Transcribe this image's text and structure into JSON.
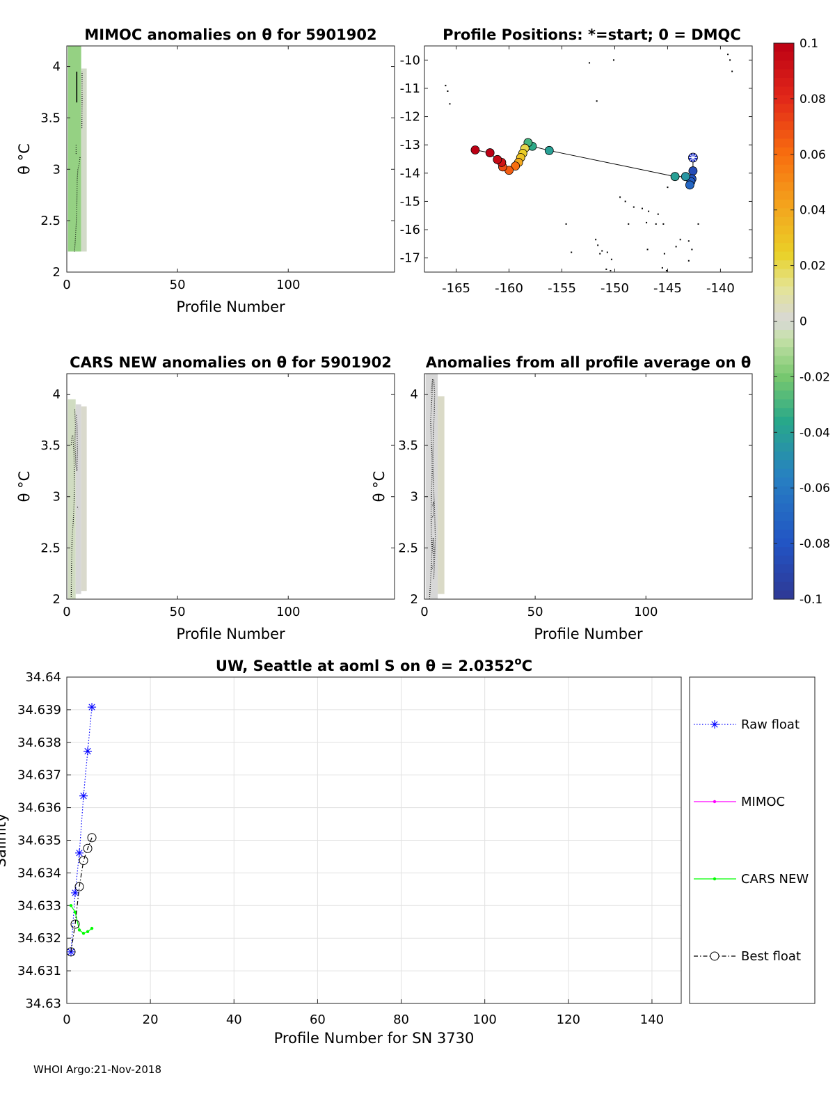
{
  "footer": "WHOI Argo:21-Nov-2018",
  "chart_data": [
    {
      "id": "mimoc",
      "type": "heatmap",
      "title": "MIMOC anomalies on θ  for 5901902",
      "xlabel": "Profile Number",
      "ylabel": "θ °C",
      "xlim": [
        0,
        148
      ],
      "ylim": [
        2,
        4.2
      ],
      "xticks": [
        0,
        50,
        100
      ],
      "yticks": [
        2,
        2.5,
        3,
        3.5,
        4
      ],
      "cells": [
        {
          "x0": 0.5,
          "x1": 6.5,
          "y0": 2.2,
          "y1": 4.2,
          "v": -0.015
        },
        {
          "x0": 6.5,
          "x1": 9,
          "y0": 2.2,
          "y1": 3.98,
          "v": -0.002
        }
      ],
      "contours": [
        {
          "x": [
            3.5,
            3.8,
            4.2,
            4.5,
            4.6,
            4.7,
            5.0,
            5.6,
            6.0
          ],
          "y": [
            2.2,
            2.3,
            2.45,
            2.6,
            2.75,
            2.9,
            3.0,
            3.05,
            3.12
          ],
          "style": "dotted"
        },
        {
          "x": [
            4.2,
            4.2
          ],
          "y": [
            3.15,
            3.25
          ],
          "style": "dotted"
        },
        {
          "x": [
            4.5,
            4.5
          ],
          "y": [
            3.65,
            3.95
          ],
          "style": "solid"
        },
        {
          "x": [
            6.8,
            6.9,
            6.9
          ],
          "y": [
            3.4,
            3.65,
            3.95
          ],
          "style": "dotted"
        }
      ]
    },
    {
      "id": "positions",
      "type": "scatter",
      "title": "Profile Positions: *=start; 0 = DMQC",
      "xlim": [
        -168,
        -137
      ],
      "ylim": [
        -17.5,
        -9.5
      ],
      "xticks": [
        -165,
        -160,
        -155,
        -150,
        -145,
        -140
      ],
      "yticks": [
        -10,
        -11,
        -12,
        -13,
        -14,
        -15,
        -16,
        -17
      ],
      "track": [
        {
          "lon": -142.6,
          "lat": -13.45,
          "v": -0.09
        },
        {
          "lon": -142.6,
          "lat": -13.92,
          "v": -0.085
        },
        {
          "lon": -142.7,
          "lat": -14.2,
          "v": -0.08
        },
        {
          "lon": -142.8,
          "lat": -14.3,
          "v": -0.075
        },
        {
          "lon": -142.9,
          "lat": -14.42,
          "v": -0.07
        },
        {
          "lon": -143.3,
          "lat": -14.12,
          "v": -0.045
        },
        {
          "lon": -144.3,
          "lat": -14.12,
          "v": -0.04
        },
        {
          "lon": -156.2,
          "lat": -13.2,
          "v": -0.04
        },
        {
          "lon": -157.8,
          "lat": -13.05,
          "v": -0.035
        },
        {
          "lon": -158.2,
          "lat": -12.92,
          "v": -0.03
        },
        {
          "lon": -158.5,
          "lat": -13.12,
          "v": 0.02
        },
        {
          "lon": -158.7,
          "lat": -13.3,
          "v": 0.025
        },
        {
          "lon": -158.9,
          "lat": -13.45,
          "v": 0.03
        },
        {
          "lon": -159.1,
          "lat": -13.62,
          "v": 0.04
        },
        {
          "lon": -159.4,
          "lat": -13.75,
          "v": 0.06
        },
        {
          "lon": -160.0,
          "lat": -13.9,
          "v": 0.065
        },
        {
          "lon": -160.6,
          "lat": -13.78,
          "v": 0.07
        },
        {
          "lon": -160.7,
          "lat": -13.62,
          "v": 0.09
        },
        {
          "lon": -161.1,
          "lat": -13.52,
          "v": 0.095
        },
        {
          "lon": -161.8,
          "lat": -13.28,
          "v": 0.1
        },
        {
          "lon": -163.2,
          "lat": -13.18,
          "v": 0.11
        }
      ],
      "start": {
        "lon": -142.6,
        "lat": -13.45
      },
      "dmqc_points": [
        [
          -166.0,
          -10.9
        ],
        [
          -165.8,
          -11.1
        ],
        [
          -165.6,
          -11.55
        ],
        [
          -152.4,
          -10.1
        ],
        [
          -150.1,
          -10.0
        ],
        [
          -139.3,
          -9.8
        ],
        [
          -139.1,
          -10.0
        ],
        [
          -138.9,
          -10.4
        ],
        [
          -151.7,
          -11.45
        ],
        [
          -145.0,
          -14.5
        ],
        [
          -142.1,
          -15.8
        ],
        [
          -154.6,
          -15.8
        ],
        [
          -149.5,
          -14.85
        ],
        [
          -149.0,
          -15.0
        ],
        [
          -148.2,
          -15.2
        ],
        [
          -147.4,
          -15.25
        ],
        [
          -146.8,
          -15.35
        ],
        [
          -145.9,
          -15.45
        ],
        [
          -147.0,
          -15.75
        ],
        [
          -146.1,
          -15.8
        ],
        [
          -145.4,
          -15.8
        ],
        [
          -148.7,
          -15.8
        ],
        [
          -151.8,
          -16.35
        ],
        [
          -151.6,
          -16.55
        ],
        [
          -151.2,
          -16.75
        ],
        [
          -151.4,
          -16.85
        ],
        [
          -150.7,
          -16.8
        ],
        [
          -154.1,
          -16.8
        ],
        [
          -146.9,
          -16.7
        ],
        [
          -145.3,
          -16.85
        ],
        [
          -144.2,
          -16.6
        ],
        [
          -143.8,
          -16.35
        ],
        [
          -143.0,
          -16.4
        ],
        [
          -142.7,
          -16.7
        ],
        [
          -143.0,
          -17.1
        ],
        [
          -150.3,
          -17.05
        ],
        [
          -150.8,
          -17.4
        ],
        [
          -150.4,
          -17.45
        ],
        [
          -145.5,
          -17.35
        ],
        [
          -145.1,
          -17.45
        ]
      ]
    },
    {
      "id": "cars",
      "type": "heatmap",
      "title": "CARS NEW anomalies on θ for 5901902",
      "xlabel": "Profile Number",
      "ylabel": "θ °C",
      "xlim": [
        0,
        148
      ],
      "ylim": [
        2,
        4.2
      ],
      "xticks": [
        0,
        50,
        100
      ],
      "yticks": [
        2,
        2.5,
        3,
        3.5,
        4
      ],
      "cells": [
        {
          "x0": 0.5,
          "x1": 4,
          "y0": 2.0,
          "y1": 3.95,
          "v": -0.003
        },
        {
          "x0": 4,
          "x1": 6.5,
          "y0": 2.05,
          "y1": 3.9,
          "v": 0.0
        },
        {
          "x0": 6.5,
          "x1": 9,
          "y0": 2.08,
          "y1": 3.88,
          "v": 0.002
        }
      ],
      "contours": [
        {
          "x": [
            2.0,
            2.1,
            2.4,
            2.9,
            3.3,
            3.4,
            3.2,
            2.7,
            2.2,
            2.0
          ],
          "y": [
            2.02,
            2.3,
            2.6,
            2.75,
            2.95,
            3.2,
            3.45,
            3.6,
            3.58,
            3.5
          ],
          "style": "dotted"
        },
        {
          "x": [
            3.6,
            3.9,
            3.7,
            4.1,
            4.6,
            4.8,
            4.6,
            4.3
          ],
          "y": [
            3.85,
            3.7,
            3.55,
            3.3,
            3.25,
            3.45,
            3.7,
            3.8
          ],
          "style": "dotted"
        },
        {
          "x": [
            4.8,
            5.2
          ],
          "y": [
            2.9,
            2.88
          ],
          "style": "dotted"
        }
      ]
    },
    {
      "id": "allprof",
      "type": "heatmap",
      "title": "Anomalies from all profile average on θ",
      "xlabel": "Profile Number",
      "ylabel": "θ °C",
      "xlim": [
        0,
        148
      ],
      "ylim": [
        2,
        4.2
      ],
      "xticks": [
        0,
        50,
        100
      ],
      "yticks": [
        2,
        2.5,
        3,
        3.5,
        4
      ],
      "cells": [
        {
          "x0": 0.5,
          "x1": 6,
          "y0": 2.0,
          "y1": 4.2,
          "v": 0.0
        },
        {
          "x0": 6,
          "x1": 9,
          "y0": 2.05,
          "y1": 3.98,
          "v": 0.003
        }
      ],
      "contours": [
        {
          "x": [
            2.3,
            2.8,
            3.2,
            3.4,
            3.1,
            3.0,
            3.2,
            3.5,
            3.3,
            3.0,
            2.8,
            3.2,
            3.6,
            3.7,
            3.4,
            3.0
          ],
          "y": [
            2.0,
            2.2,
            2.35,
            2.5,
            2.65,
            2.85,
            3.05,
            3.25,
            3.45,
            3.6,
            3.75,
            3.9,
            4.05,
            4.15,
            4.1,
            4.0
          ],
          "style": "dotted"
        },
        {
          "x": [
            4.2,
            4.6,
            4.9,
            4.6,
            4.3,
            4.0,
            3.8,
            4.0,
            4.4,
            4.6,
            4.2
          ],
          "y": [
            2.2,
            2.4,
            2.6,
            2.85,
            3.0,
            3.2,
            3.4,
            3.6,
            3.8,
            4.0,
            4.15
          ],
          "style": "dotted"
        },
        {
          "x": [
            3.5,
            4.1,
            4.3,
            3.9,
            3.5
          ],
          "y": [
            2.3,
            2.35,
            2.5,
            2.6,
            2.45
          ],
          "style": "dotted"
        },
        {
          "x": [
            3.6,
            4.1,
            4.1,
            3.6
          ],
          "y": [
            2.8,
            2.82,
            2.95,
            2.9
          ],
          "style": "dotted"
        }
      ]
    },
    {
      "id": "salinity",
      "type": "line",
      "title": "UW, Seattle at aoml S on θ = 2.0352",
      "title_sup": "o",
      "title_tail": "C",
      "xlabel": "Profile Number for SN 3730",
      "ylabel": "Salinity",
      "xlim": [
        0,
        147
      ],
      "ylim": [
        34.63,
        34.64
      ],
      "xticks": [
        0,
        20,
        40,
        60,
        80,
        100,
        120,
        140
      ],
      "yticks": [
        34.63,
        34.631,
        34.632,
        34.633,
        34.634,
        34.635,
        34.636,
        34.637,
        34.638,
        34.639,
        34.64
      ],
      "grid": true,
      "series": [
        {
          "name": "Raw float",
          "color": "#0000ff",
          "marker": "star",
          "linestyle": "dotted",
          "x": [
            1,
            2,
            3,
            4,
            5,
            6
          ],
          "values": [
            34.63158,
            34.63339,
            34.63461,
            34.63636,
            34.63773,
            34.63908
          ]
        },
        {
          "name": "MIMOC",
          "color": "#ff00ff",
          "marker": "point",
          "linestyle": "solid",
          "x": [],
          "values": []
        },
        {
          "name": "CARS NEW",
          "color": "#00ff00",
          "marker": "point",
          "linestyle": "solid",
          "x": [
            1,
            2,
            3,
            4,
            5,
            6
          ],
          "values": [
            34.633,
            34.6328,
            34.63225,
            34.63215,
            34.6322,
            34.6323
          ]
        },
        {
          "name": "Best float",
          "color": "#000000",
          "marker": "circle",
          "linestyle": "dashdot",
          "x": [
            1,
            2,
            3,
            4,
            5,
            6
          ],
          "values": [
            34.63158,
            34.63243,
            34.63358,
            34.63438,
            34.63475,
            34.63508
          ]
        }
      ]
    }
  ],
  "colorbar": {
    "min": -0.1,
    "max": 0.1,
    "ticks": [
      "0.1",
      "0.08",
      "0.06",
      "0.04",
      "0.02",
      "0",
      "-0.02",
      "-0.04",
      "-0.06",
      "-0.08",
      "-0.1"
    ]
  }
}
